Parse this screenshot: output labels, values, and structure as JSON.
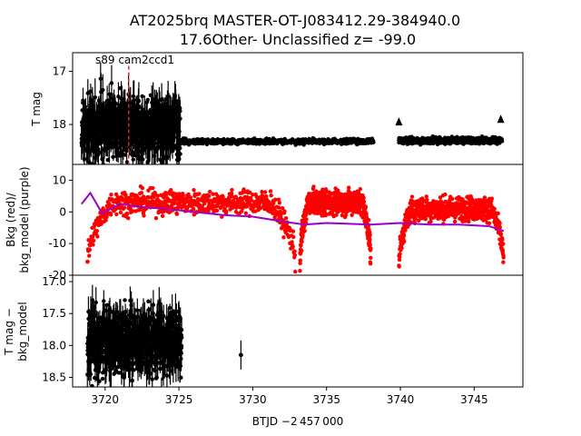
{
  "figure": {
    "title_line1": "AT2025brq  MASTER-OT-J083412.29-384940.0",
    "title_line2": "17.6Other- Unclassified z= -99.0",
    "annotation": "s89 cam2ccd1",
    "xlabel": "BTJD −2 457 000"
  },
  "chart_data": [
    {
      "type": "scatter",
      "name": "top-panel",
      "ylabel": "T mag",
      "ylim": [
        18.75,
        16.65
      ],
      "y_inverted": true,
      "xlim": [
        3717.8,
        3748.3
      ],
      "x_ticks": [
        3720,
        3725,
        3730,
        3735,
        3740,
        3745
      ],
      "y_ticks": [
        17,
        18
      ],
      "series": [
        {
          "name": "T mag",
          "color": "#000000",
          "segments": [
            {
              "x_start": 3718.4,
              "x_end": 3725.1,
              "y_center": 18.05,
              "scatter": 0.55,
              "errorbars": true
            },
            {
              "x_start": 3725.1,
              "x_end": 3738.2,
              "y_center": 18.32,
              "scatter": 0.04
            },
            {
              "x_start": 3739.9,
              "x_end": 3746.9,
              "y_center": 18.3,
              "scatter": 0.05
            }
          ],
          "marker_points": [
            {
              "x": 3739.9,
              "y": 17.95
            },
            {
              "x": 3746.8,
              "y": 17.9
            }
          ]
        },
        {
          "name": "marker line",
          "color": "#d62728",
          "x": 3721.6,
          "y_range": [
            16.9,
            18.9
          ]
        }
      ]
    },
    {
      "type": "scatter",
      "name": "middle-panel",
      "ylabel": "Bkg (red)/\nbkg_model (purple)",
      "ylim": [
        -20,
        15
      ],
      "xlim": [
        3717.8,
        3748.3
      ],
      "y_ticks": [
        10,
        0,
        -10,
        -20
      ],
      "series": [
        {
          "name": "Bkg",
          "color": "#ff0000",
          "segments": [
            {
              "x_start": 3718.8,
              "x_end": 3732.9,
              "shape": "dome",
              "y_edge": -17,
              "y_top": 3
            },
            {
              "x_start": 3733.2,
              "x_end": 3738.0,
              "shape": "dome",
              "y_edge": -17,
              "y_top": 3
            },
            {
              "x_start": 3739.9,
              "x_end": 3747.0,
              "shape": "dome",
              "y_edge": -17,
              "y_top": 1
            }
          ]
        },
        {
          "name": "bkg_model",
          "color": "#9b00c8",
          "x": [
            3718.4,
            3719.0,
            3719.8,
            3721.0,
            3722.5,
            3724.0,
            3726.0,
            3728.0,
            3730.0,
            3732.0,
            3733.5,
            3735.0,
            3738.0,
            3740.0,
            3742.0,
            3744.0,
            3746.0,
            3747.0
          ],
          "y": [
            2.5,
            6.0,
            -0.5,
            2.5,
            1.5,
            1.0,
            0.0,
            -1.0,
            -1.5,
            -3.0,
            -4.0,
            -3.5,
            -4.0,
            -3.5,
            -4.0,
            -4.0,
            -4.5,
            -6.0
          ]
        }
      ]
    },
    {
      "type": "scatter",
      "name": "bottom-panel",
      "ylabel": "T mag −\nbkg_model",
      "ylim": [
        18.65,
        16.9
      ],
      "y_inverted": true,
      "xlim": [
        3717.8,
        3748.3
      ],
      "y_ticks": [
        17.0,
        17.5,
        18.0,
        18.5
      ],
      "series": [
        {
          "name": "T mag - bkg_model",
          "color": "#000000",
          "segments": [
            {
              "x_start": 3718.8,
              "x_end": 3725.2,
              "y_center": 17.95,
              "scatter": 0.5,
              "errorbars": true
            }
          ],
          "points": [
            {
              "x": 3729.2,
              "y": 18.15
            }
          ]
        }
      ]
    }
  ]
}
